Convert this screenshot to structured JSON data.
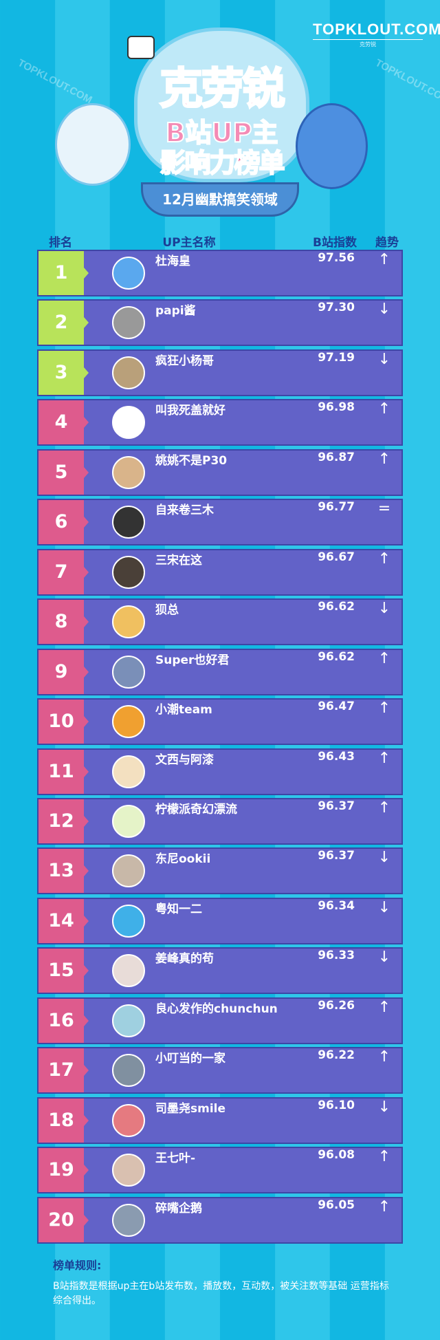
{
  "brand": {
    "name": "TOPKLOUT.COM",
    "tagline": "克劳锐"
  },
  "title": {
    "line1": "克劳锐",
    "line2": "B站UP主",
    "line3": "影响力榜单",
    "subtitle": "12月幽默搞笑领域"
  },
  "columns": {
    "rank": "排名",
    "name": "UP主名称",
    "index": "B站指数",
    "trend": "趋势"
  },
  "colors": {
    "top3": "#b8e35a",
    "others": "#de5b8d",
    "row": "#6262c8",
    "background": "#12b7e2"
  },
  "rows": [
    {
      "rank": "1",
      "name": "杜海皇",
      "score": "97.56",
      "trend": "↑"
    },
    {
      "rank": "2",
      "name": "papi酱",
      "score": "97.30",
      "trend": "↓"
    },
    {
      "rank": "3",
      "name": "疯狂小杨哥",
      "score": "97.19",
      "trend": "↓"
    },
    {
      "rank": "4",
      "name": "叫我死盖就好",
      "score": "96.98",
      "trend": "↑"
    },
    {
      "rank": "5",
      "name": "姚姚不是P30",
      "score": "96.87",
      "trend": "↑"
    },
    {
      "rank": "6",
      "name": "自来卷三木",
      "score": "96.77",
      "trend": "="
    },
    {
      "rank": "7",
      "name": "三宋在这",
      "score": "96.67",
      "trend": "↑"
    },
    {
      "rank": "8",
      "name": "狈总",
      "score": "96.62",
      "trend": "↓"
    },
    {
      "rank": "9",
      "name": "Super也好君",
      "score": "96.62",
      "trend": "↑"
    },
    {
      "rank": "10",
      "name": "小潮team",
      "score": "96.47",
      "trend": "↑"
    },
    {
      "rank": "11",
      "name": "文西与阿漆",
      "score": "96.43",
      "trend": "↑"
    },
    {
      "rank": "12",
      "name": "柠檬派奇幻漂流",
      "score": "96.37",
      "trend": "↑"
    },
    {
      "rank": "13",
      "name": "东尼ookii",
      "score": "96.37",
      "trend": "↓"
    },
    {
      "rank": "14",
      "name": "粤知一二",
      "score": "96.34",
      "trend": "↓"
    },
    {
      "rank": "15",
      "name": "姜峰真的苟",
      "score": "96.33",
      "trend": "↓"
    },
    {
      "rank": "16",
      "name": "良心发作的chunchun",
      "score": "96.26",
      "trend": "↑"
    },
    {
      "rank": "17",
      "name": "小叮当的一家",
      "score": "96.22",
      "trend": "↑"
    },
    {
      "rank": "18",
      "name": "司墨尧smile",
      "score": "96.10",
      "trend": "↓"
    },
    {
      "rank": "19",
      "name": "王七叶-",
      "score": "96.08",
      "trend": "↑"
    },
    {
      "rank": "20",
      "name": "碎嘴企鹅",
      "score": "96.05",
      "trend": "↑"
    }
  ],
  "rules": {
    "heading": "榜单规则:",
    "text": "B站指数是根据up主在b站发布数，播放数，互动数，被关注数等基础 运营指标综合得出。"
  }
}
